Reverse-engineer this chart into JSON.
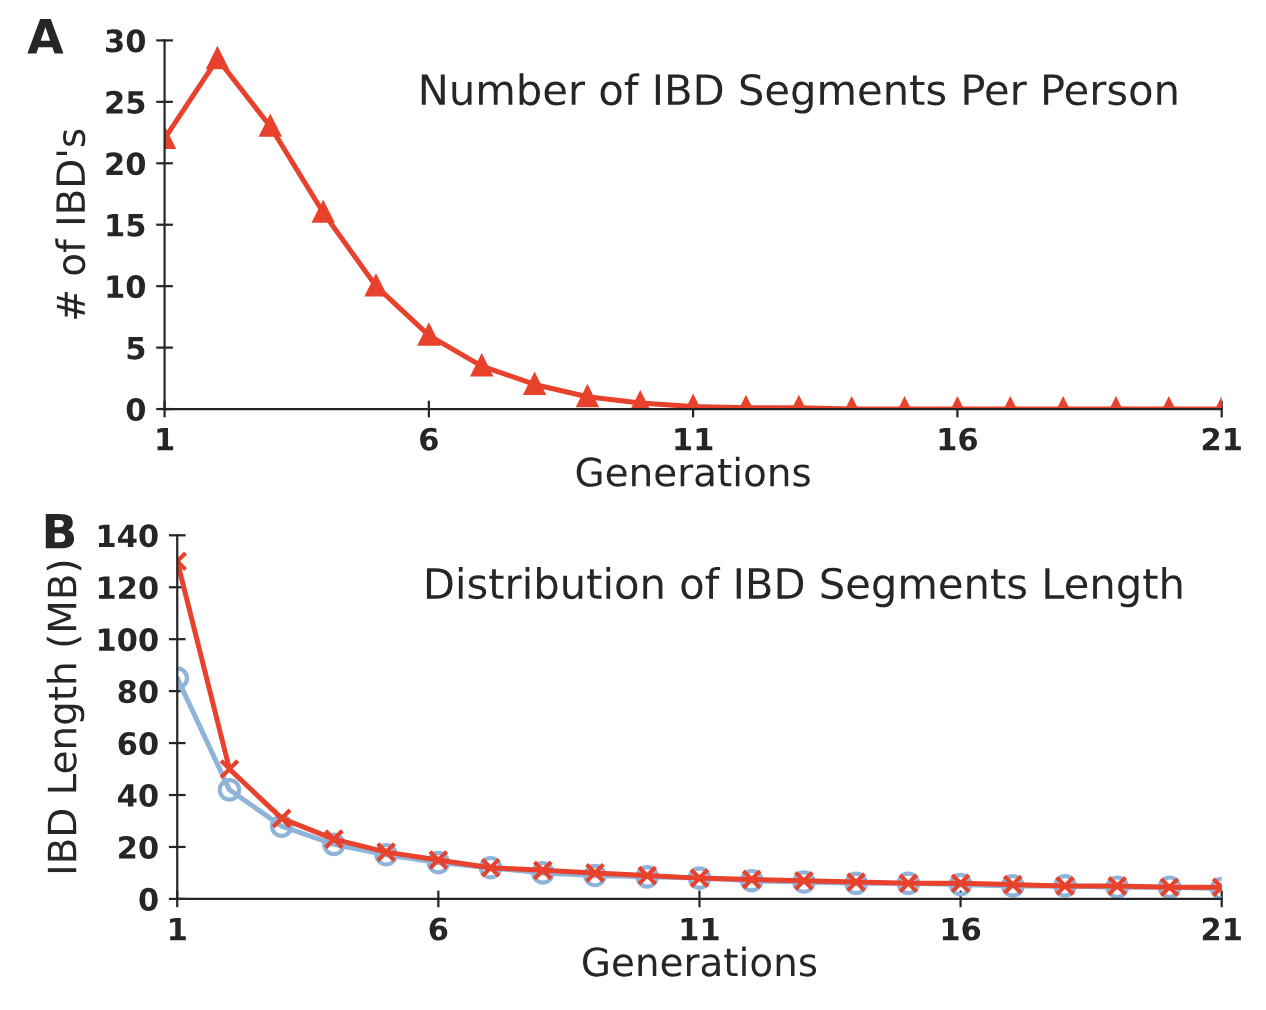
{
  "chart_data": [
    {
      "type": "line",
      "title": "Number of IBD Segments Per Person",
      "xlabel": "Generations",
      "ylabel": "# of IBD's",
      "annotations": [
        "A"
      ],
      "x": [
        1,
        2,
        3,
        4,
        5,
        6,
        7,
        8,
        9,
        10,
        11,
        12,
        13,
        14,
        15,
        16,
        17,
        18,
        19,
        20,
        21
      ],
      "series": [
        {
          "color": "#e8412c",
          "marker": "triangle",
          "values": [
            22,
            28.5,
            23,
            16,
            10,
            6,
            3.5,
            2,
            1,
            0.5,
            0.2,
            0.1,
            0.1,
            0,
            0,
            0,
            0,
            0,
            0,
            0,
            0
          ]
        }
      ],
      "xlim": [
        1,
        21
      ],
      "xticks": [
        1,
        6,
        11,
        16,
        21
      ],
      "ylim": [
        0,
        30
      ],
      "yticks": [
        0,
        5,
        10,
        15,
        20,
        25,
        30
      ],
      "grid": false,
      "legend": false
    },
    {
      "type": "line",
      "title": "Distribution of IBD Segments Length",
      "xlabel": "Generations",
      "ylabel": "IBD Length (MB)",
      "annotations": [
        "B"
      ],
      "x": [
        1,
        2,
        3,
        4,
        5,
        6,
        7,
        8,
        9,
        10,
        11,
        12,
        13,
        14,
        15,
        16,
        17,
        18,
        19,
        20,
        21
      ],
      "series": [
        {
          "color": "#8fb3d9",
          "marker": "circle",
          "values": [
            85,
            42,
            28,
            21,
            17,
            14,
            12,
            10,
            9,
            8.5,
            8,
            7,
            6.5,
            6,
            6,
            5.5,
            5,
            5,
            4.5,
            4.5,
            4
          ]
        },
        {
          "color": "#e8412c",
          "marker": "cross",
          "values": [
            130,
            50,
            31,
            23,
            18,
            15,
            12,
            11,
            10,
            9,
            8,
            7.5,
            7,
            6.5,
            6,
            6,
            5.5,
            5,
            5,
            4.5,
            4.5
          ]
        }
      ],
      "xlim": [
        1,
        21
      ],
      "xticks": [
        1,
        6,
        11,
        16,
        21
      ],
      "ylim": [
        0,
        140
      ],
      "yticks": [
        0,
        20,
        40,
        60,
        80,
        100,
        120,
        140
      ],
      "grid": false,
      "legend": false
    }
  ]
}
